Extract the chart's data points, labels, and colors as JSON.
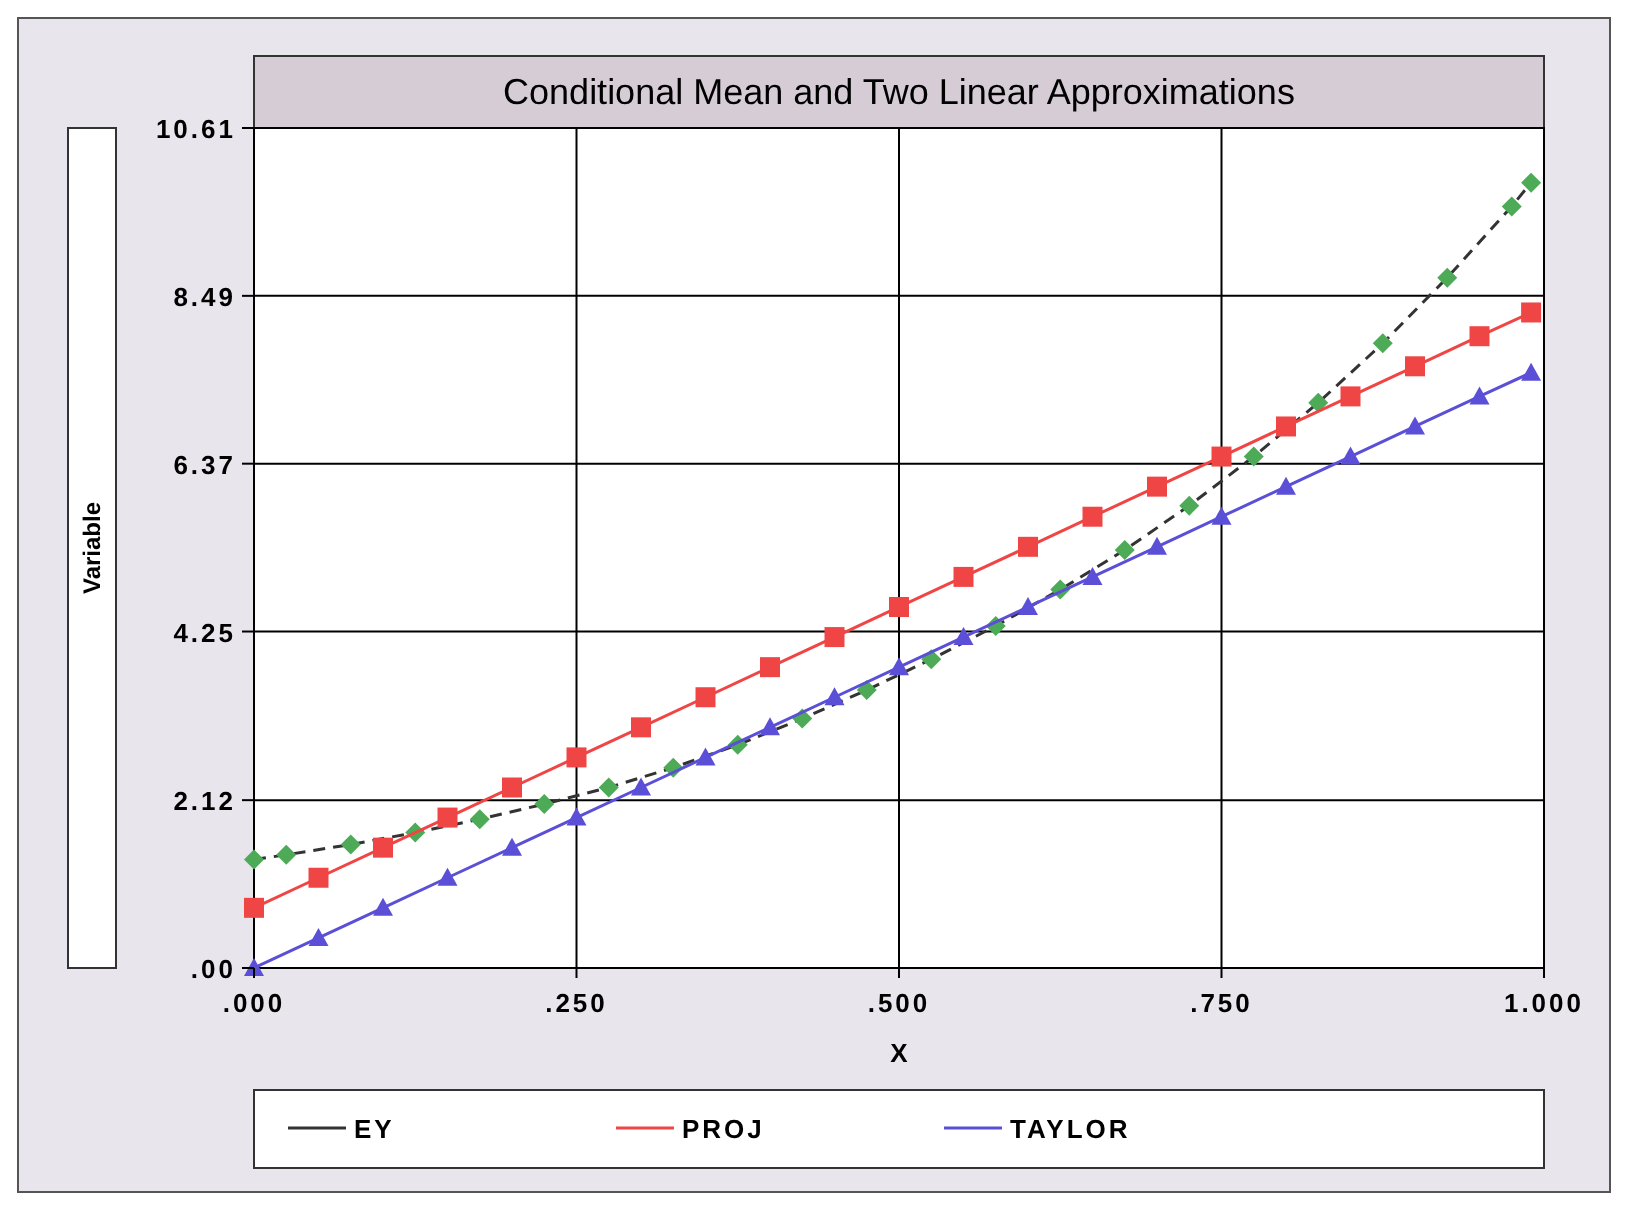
{
  "chart_data": {
    "type": "line",
    "title": "Conditional Mean and Two Linear Approximations",
    "xlabel": "X",
    "ylabel": "Variable",
    "x": [
      0,
      0.05,
      0.1,
      0.15,
      0.2,
      0.25,
      0.3,
      0.35,
      0.4,
      0.45,
      0.5,
      0.55,
      0.6,
      0.65,
      0.7,
      0.75,
      0.8,
      0.85,
      0.9,
      0.95,
      0.99
    ],
    "series": [
      {
        "name": "EY",
        "color": "#4daa57",
        "marker": "diamond",
        "line_style": "dashed",
        "x": [
          0,
          0.025,
          0.075,
          0.125,
          0.175,
          0.225,
          0.275,
          0.325,
          0.375,
          0.425,
          0.475,
          0.525,
          0.575,
          0.625,
          0.675,
          0.725,
          0.775,
          0.825,
          0.875,
          0.925,
          0.975,
          0.99
        ],
        "values": [
          1.37,
          1.43,
          1.56,
          1.71,
          1.88,
          2.07,
          2.28,
          2.53,
          2.82,
          3.15,
          3.51,
          3.9,
          4.32,
          4.78,
          5.28,
          5.84,
          6.46,
          7.14,
          7.89,
          8.72,
          9.62,
          9.92
        ]
      },
      {
        "name": "PROJ",
        "color": "#f04545",
        "marker": "square",
        "values": [
          0.76,
          1.14,
          1.52,
          1.9,
          2.28,
          2.66,
          3.04,
          3.42,
          3.8,
          4.18,
          4.56,
          4.94,
          5.32,
          5.7,
          6.08,
          6.46,
          6.84,
          7.22,
          7.6,
          7.98,
          8.28
        ]
      },
      {
        "name": "TAYLOR",
        "color": "#5a4fd6",
        "marker": "triangle",
        "values": [
          0,
          0.38,
          0.76,
          1.14,
          1.52,
          1.9,
          2.28,
          2.66,
          3.04,
          3.42,
          3.8,
          4.18,
          4.56,
          4.94,
          5.32,
          5.7,
          6.08,
          6.46,
          6.84,
          7.22,
          7.52
        ]
      }
    ],
    "xlim": [
      0,
      1
    ],
    "xticks": [
      {
        "value": 0,
        "label": ".000"
      },
      {
        "value": 0.25,
        "label": ".250"
      },
      {
        "value": 0.5,
        "label": ".500"
      },
      {
        "value": 0.75,
        "label": ".750"
      },
      {
        "value": 1,
        "label": "1.000"
      }
    ],
    "ylim": [
      0,
      10.61
    ],
    "yticks": [
      {
        "value": 0,
        "label": ".00"
      },
      2.12,
      4.25,
      6.37,
      8.49,
      10.61
    ],
    "grid": true,
    "legend": "bottom"
  }
}
